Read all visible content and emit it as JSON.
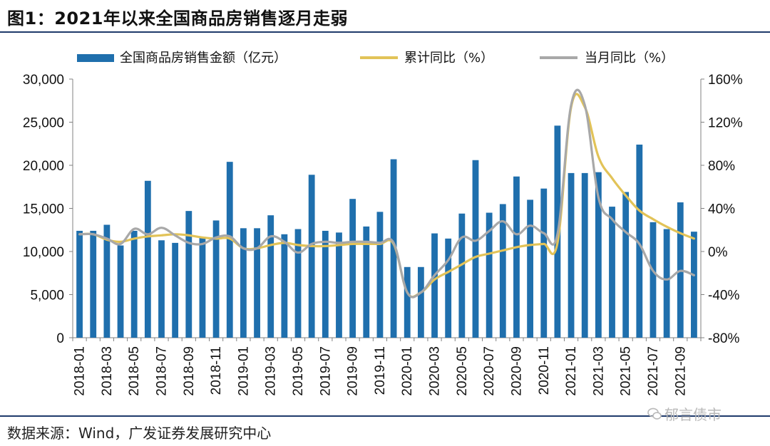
{
  "title": "图1：2021年以来全国商品房销售逐月走弱",
  "source": "数据来源：Wind，广发证券发展研究中心",
  "watermark": "郁言债市",
  "colors": {
    "bar": "#1f6fad",
    "cum": "#e2c358",
    "mon": "#a8a8a8",
    "rule": "#1f3a6b"
  },
  "chart_data": {
    "type": "bar",
    "legend": [
      "全国商品房销售金额（亿元）",
      "累计同比（%）",
      "当月同比（%）"
    ],
    "left_axis": {
      "min": 0,
      "max": 30000,
      "ticks": [
        "0",
        "5,000",
        "10,000",
        "15,000",
        "20,000",
        "25,000",
        "30,000"
      ]
    },
    "right_axis": {
      "min": -80,
      "max": 160,
      "ticks": [
        "-80%",
        "-40%",
        "0%",
        "40%",
        "80%",
        "120%",
        "160%"
      ]
    },
    "x_tick_labels": [
      "2018-01",
      "2018-03",
      "2018-05",
      "2018-07",
      "2018-09",
      "2018-11",
      "2019-01",
      "2019-03",
      "2019-05",
      "2019-07",
      "2019-09",
      "2019-11",
      "2020-01",
      "2020-03",
      "2020-05",
      "2020-07",
      "2020-09",
      "2020-11",
      "2021-01",
      "2021-03",
      "2021-05",
      "2021-07",
      "2021-09"
    ],
    "categories": [
      "2018-01",
      "2018-02",
      "2018-03",
      "2018-04",
      "2018-05",
      "2018-06",
      "2018-07",
      "2018-08",
      "2018-09",
      "2018-10",
      "2018-11",
      "2018-12",
      "2019-01",
      "2019-02",
      "2019-03",
      "2019-04",
      "2019-05",
      "2019-06",
      "2019-07",
      "2019-08",
      "2019-09",
      "2019-10",
      "2019-11",
      "2019-12",
      "2020-01",
      "2020-02",
      "2020-03",
      "2020-04",
      "2020-05",
      "2020-06",
      "2020-07",
      "2020-08",
      "2020-09",
      "2020-10",
      "2020-11",
      "2020-12",
      "2021-01",
      "2021-02",
      "2021-03",
      "2021-04",
      "2021-05",
      "2021-06",
      "2021-07",
      "2021-08",
      "2021-09",
      "2021-10"
    ],
    "series": [
      {
        "name": "全国商品房销售金额（亿元）",
        "type": "bar",
        "axis": "left",
        "values": [
          12400,
          12400,
          13100,
          10700,
          12400,
          18200,
          11300,
          11000,
          14700,
          11700,
          13600,
          20400,
          12700,
          12700,
          14200,
          12000,
          12600,
          18900,
          12400,
          12200,
          16100,
          12900,
          14600,
          20700,
          8200,
          8200,
          12100,
          11500,
          14400,
          20600,
          14500,
          15500,
          18700,
          16000,
          17300,
          24600,
          19100,
          19100,
          19200,
          15200,
          16900,
          22400,
          13400,
          12600,
          15700,
          12300
        ]
      },
      {
        "name": "累计同比（%）",
        "type": "line",
        "axis": "right",
        "values": [
          16,
          16,
          11,
          9,
          12,
          14,
          15,
          16,
          15,
          13,
          12,
          12,
          3,
          3,
          6,
          8,
          6,
          5,
          5,
          6,
          7,
          7,
          7,
          7,
          -38,
          -38,
          -26,
          -19,
          -12,
          -5,
          -2,
          1,
          4,
          6,
          7,
          8,
          134,
          134,
          88,
          68,
          52,
          38,
          30,
          23,
          17,
          12
        ]
      },
      {
        "name": "当月同比（%）",
        "type": "line",
        "axis": "right",
        "values": [
          16,
          16,
          12,
          7,
          21,
          16,
          22,
          15,
          8,
          7,
          13,
          14,
          3,
          3,
          14,
          9,
          -1,
          7,
          9,
          8,
          9,
          9,
          8,
          8,
          -38,
          -38,
          -22,
          -8,
          13,
          10,
          19,
          28,
          16,
          24,
          17,
          16,
          136,
          136,
          50,
          30,
          18,
          7,
          -18,
          -26,
          -18,
          -22
        ]
      }
    ]
  }
}
